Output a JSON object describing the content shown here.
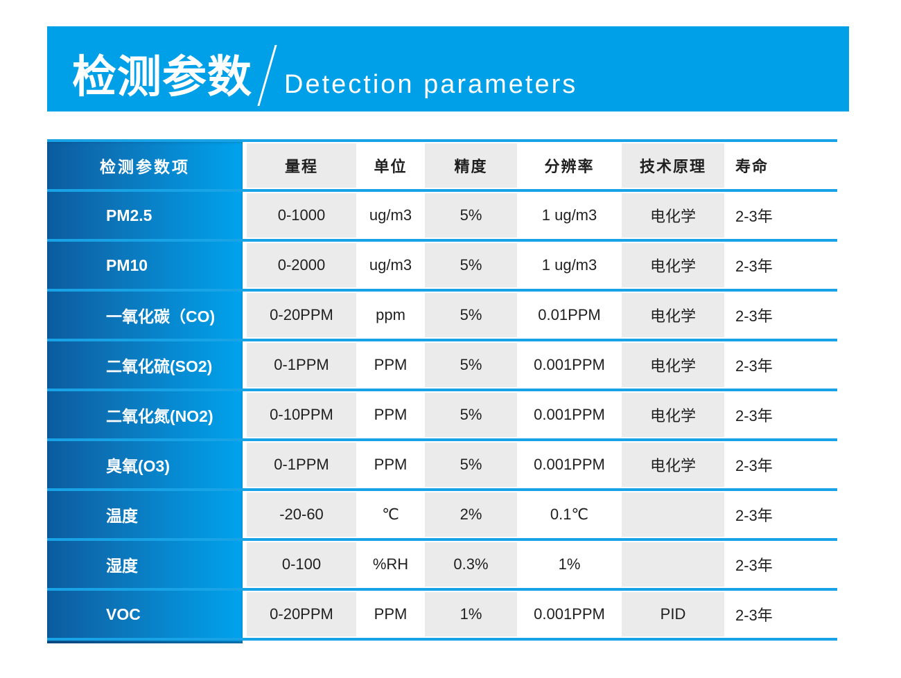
{
  "banner": {
    "title_zh": "检测参数",
    "title_en": "Detection parameters"
  },
  "table": {
    "columns": [
      "检测参数项",
      "量程",
      "单位",
      "精度",
      "分辨率",
      "技术原理",
      "寿命"
    ],
    "rows": [
      {
        "name": "PM2.5",
        "range": "0-1000",
        "unit": "ug/m3",
        "accuracy": "5%",
        "resolution": "1 ug/m3",
        "principle": "电化学",
        "lifespan": "2-3年"
      },
      {
        "name": "PM10",
        "range": "0-2000",
        "unit": "ug/m3",
        "accuracy": "5%",
        "resolution": "1 ug/m3",
        "principle": "电化学",
        "lifespan": "2-3年"
      },
      {
        "name": "一氧化碳（CO)",
        "range": "0-20PPM",
        "unit": "ppm",
        "accuracy": "5%",
        "resolution": "0.01PPM",
        "principle": "电化学",
        "lifespan": "2-3年"
      },
      {
        "name": "二氧化硫(SO2)",
        "range": "0-1PPM",
        "unit": "PPM",
        "accuracy": "5%",
        "resolution": "0.001PPM",
        "principle": "电化学",
        "lifespan": "2-3年"
      },
      {
        "name": "二氧化氮(NO2)",
        "range": "0-10PPM",
        "unit": "PPM",
        "accuracy": "5%",
        "resolution": "0.001PPM",
        "principle": "电化学",
        "lifespan": "2-3年"
      },
      {
        "name": "臭氧(O3)",
        "range": "0-1PPM",
        "unit": "PPM",
        "accuracy": "5%",
        "resolution": "0.001PPM",
        "principle": "电化学",
        "lifespan": "2-3年"
      },
      {
        "name": "温度",
        "range": "-20-60",
        "unit": "℃",
        "accuracy": "2%",
        "resolution": "0.1℃",
        "principle": "",
        "lifespan": "2-3年"
      },
      {
        "name": "湿度",
        "range": "0-100",
        "unit": "%RH",
        "accuracy": "0.3%",
        "resolution": "1%",
        "principle": "",
        "lifespan": "2-3年"
      },
      {
        "name": "VOC",
        "range": "0-20PPM",
        "unit": "PPM",
        "accuracy": "1%",
        "resolution": "0.001PPM",
        "principle": "PID",
        "lifespan": "2-3年"
      }
    ]
  },
  "colors": {
    "accent_blue": "#00a0e9",
    "separator_blue": "#17a3e6",
    "column_gradient_start": "#0a5c9e",
    "column_gradient_end": "#00a3ed",
    "stripe_gray": "#ebebeb",
    "text_dark": "#1f1f1f"
  }
}
